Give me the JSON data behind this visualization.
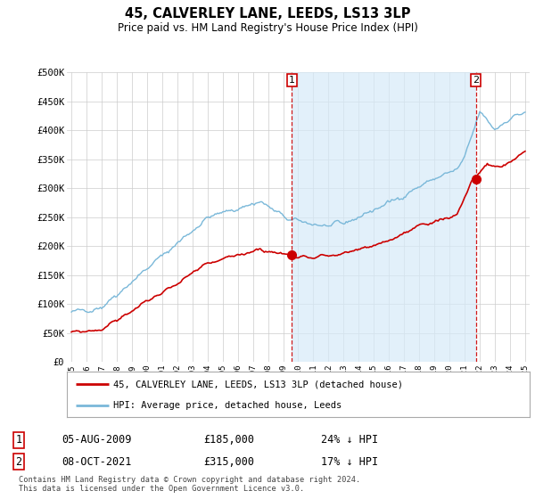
{
  "title": "45, CALVERLEY LANE, LEEDS, LS13 3LP",
  "subtitle": "Price paid vs. HM Land Registry's House Price Index (HPI)",
  "ylim": [
    0,
    500000
  ],
  "yticks": [
    0,
    50000,
    100000,
    150000,
    200000,
    250000,
    300000,
    350000,
    400000,
    450000,
    500000
  ],
  "ytick_labels": [
    "£0",
    "£50K",
    "£100K",
    "£150K",
    "£200K",
    "£250K",
    "£300K",
    "£350K",
    "£400K",
    "£450K",
    "£500K"
  ],
  "hpi_color": "#7ab8d9",
  "price_color": "#cc0000",
  "marker_color": "#cc0000",
  "shade_color": "#d6eaf8",
  "purchase1_date_num": 2009.583,
  "purchase1_price": 185000,
  "purchase2_date_num": 2021.75,
  "purchase2_price": 315000,
  "legend_line1": "45, CALVERLEY LANE, LEEDS, LS13 3LP (detached house)",
  "legend_line2": "HPI: Average price, detached house, Leeds",
  "table_row1": [
    "1",
    "05-AUG-2009",
    "£185,000",
    "24% ↓ HPI"
  ],
  "table_row2": [
    "2",
    "08-OCT-2021",
    "£315,000",
    "17% ↓ HPI"
  ],
  "footer": "Contains HM Land Registry data © Crown copyright and database right 2024.\nThis data is licensed under the Open Government Licence v3.0.",
  "bg_color": "#ffffff",
  "grid_color": "#cccccc"
}
